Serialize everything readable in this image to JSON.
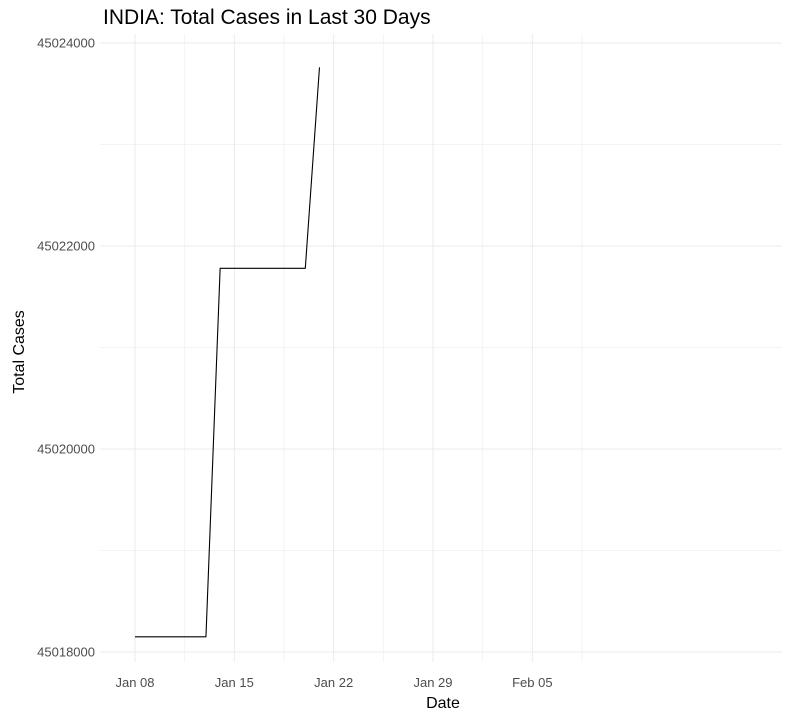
{
  "chart_data": {
    "type": "line",
    "title": "INDIA: Total Cases in Last 30 Days",
    "xlabel": "Date",
    "ylabel": "Total Cases",
    "x_ticks": [
      "Jan 08",
      "Jan 15",
      "Jan 22",
      "Jan 29",
      "Feb 05"
    ],
    "y_ticks": [
      "45018000",
      "45020000",
      "45022000",
      "45024000"
    ],
    "xlim": [
      "2023-01-08",
      "2023-02-07"
    ],
    "ylim": [
      45018000,
      45024000
    ],
    "grid": true,
    "series": [
      {
        "color": "#000000",
        "x": [
          "2023-01-08",
          "2023-01-09",
          "2023-01-10",
          "2023-01-11",
          "2023-01-12",
          "2023-01-13",
          "2023-01-14",
          "2023-01-15",
          "2023-01-16",
          "2023-01-17",
          "2023-01-18",
          "2023-01-19",
          "2023-01-20",
          "2023-01-21"
        ],
        "values": [
          45018150,
          45018150,
          45018150,
          45018150,
          45018150,
          45018150,
          45021780,
          45021780,
          45021780,
          45021780,
          45021780,
          45021780,
          45021780,
          45023760
        ]
      }
    ]
  }
}
